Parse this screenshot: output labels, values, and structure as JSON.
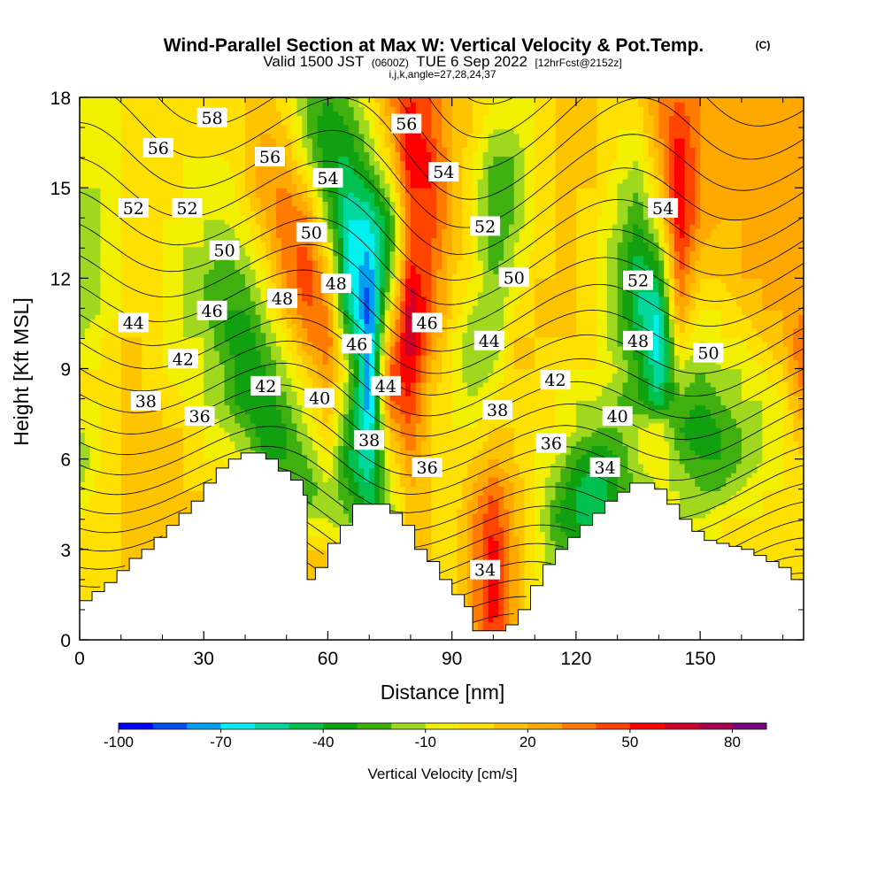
{
  "title": {
    "main": "Wind-Parallel Section at Max W: Vertical Velocity & Pot.Temp.",
    "copyright": "(C)",
    "valid_prefix": "Valid 1500 JST",
    "valid_utc": "(0600Z)",
    "valid_date": "TUE 6 Sep 2022",
    "forecast": "[12hrFcst@2152z]",
    "indices": "i,j,k,angle=27,28,24,37"
  },
  "chart_data": {
    "type": "heatmap",
    "xlabel": "Distance [nm]",
    "ylabel": "Height [Kft MSL]",
    "xlim": [
      0,
      175
    ],
    "ylim": [
      0,
      18
    ],
    "x_ticks": [
      "0",
      "30",
      "60",
      "90",
      "120",
      "150"
    ],
    "x_tick_values": [
      0,
      30,
      60,
      90,
      120,
      150
    ],
    "y_ticks": [
      "0",
      "3",
      "6",
      "9",
      "12",
      "15",
      "18"
    ],
    "y_tick_values": [
      0,
      3,
      6,
      9,
      12,
      15,
      18
    ],
    "colorbar": {
      "label": "Vertical Velocity [cm/s]",
      "tick_labels": [
        "-100",
        "-70",
        "-40",
        "-10",
        "20",
        "50",
        "80"
      ],
      "tick_values": [
        -100,
        -70,
        -40,
        -10,
        20,
        50,
        80
      ],
      "bins": [
        -100,
        -90,
        -80,
        -70,
        -60,
        -50,
        -40,
        -30,
        -20,
        -10,
        0,
        10,
        20,
        30,
        40,
        50,
        60,
        70,
        80,
        90
      ],
      "colors": [
        "#0000ff",
        "#0050f0",
        "#00a0f0",
        "#00f0f0",
        "#00d8a0",
        "#00c050",
        "#10a010",
        "#40b010",
        "#a0d820",
        "#f0f000",
        "#ffe000",
        "#ffc400",
        "#ffa800",
        "#ff7c00",
        "#ff4400",
        "#ff0000",
        "#d0002a",
        "#a80050",
        "#780080"
      ]
    },
    "w_field": {
      "description": "Vertical velocity (cm/s) sampled on a regular grid",
      "x": [
        0,
        5,
        10,
        15,
        20,
        25,
        30,
        35,
        40,
        45,
        50,
        55,
        60,
        65,
        70,
        75,
        80,
        85,
        90,
        95,
        100,
        105,
        110,
        115,
        120,
        125,
        130,
        135,
        140,
        145,
        150,
        155,
        160,
        165,
        170,
        175
      ],
      "y": [
        0,
        1,
        2,
        3,
        4,
        5,
        6,
        7,
        8,
        9,
        10,
        11,
        12,
        13,
        14,
        15,
        16,
        17,
        18
      ],
      "values": [
        [
          0,
          5,
          10,
          10,
          10,
          10,
          10,
          10,
          10,
          10,
          10,
          10,
          10,
          0,
          -30,
          -20,
          20,
          10,
          0,
          20,
          50,
          20,
          0,
          -20,
          -30,
          -40,
          -30,
          -20,
          -10,
          -10,
          -10,
          0,
          0,
          0,
          0,
          0
        ],
        [
          0,
          5,
          10,
          10,
          10,
          10,
          10,
          10,
          10,
          10,
          10,
          10,
          10,
          0,
          -40,
          -20,
          20,
          10,
          0,
          30,
          55,
          25,
          0,
          -20,
          -30,
          -40,
          -30,
          -20,
          -10,
          -10,
          -10,
          0,
          0,
          0,
          0,
          0
        ],
        [
          0,
          5,
          10,
          10,
          10,
          10,
          10,
          10,
          10,
          10,
          10,
          10,
          10,
          0,
          -40,
          -20,
          20,
          10,
          0,
          30,
          55,
          25,
          0,
          -20,
          -30,
          -40,
          -30,
          -20,
          -10,
          -10,
          -10,
          0,
          0,
          0,
          0,
          10
        ],
        [
          0,
          5,
          10,
          10,
          10,
          10,
          10,
          10,
          10,
          10,
          10,
          10,
          10,
          0,
          -40,
          -20,
          20,
          10,
          0,
          30,
          55,
          25,
          0,
          -20,
          -30,
          -40,
          -40,
          -20,
          -10,
          -10,
          -10,
          0,
          0,
          0,
          0,
          10
        ],
        [
          0,
          5,
          10,
          10,
          10,
          10,
          10,
          10,
          10,
          10,
          0,
          -10,
          -10,
          -20,
          -40,
          -20,
          20,
          10,
          0,
          30,
          50,
          20,
          0,
          -30,
          -40,
          -50,
          -40,
          -20,
          -10,
          -10,
          -10,
          0,
          0,
          0,
          0,
          10
        ],
        [
          -10,
          5,
          10,
          10,
          10,
          10,
          10,
          10,
          10,
          0,
          -20,
          -30,
          -10,
          -30,
          -50,
          -10,
          20,
          10,
          0,
          20,
          40,
          20,
          0,
          -20,
          -40,
          -50,
          -30,
          -20,
          -10,
          -10,
          -20,
          -20,
          -10,
          0,
          0,
          10
        ],
        [
          -20,
          0,
          10,
          10,
          10,
          10,
          0,
          0,
          -10,
          -30,
          -30,
          -20,
          0,
          -40,
          -60,
          0,
          30,
          10,
          0,
          10,
          20,
          10,
          0,
          -10,
          -30,
          -40,
          -30,
          -10,
          0,
          -20,
          -30,
          -30,
          -20,
          -10,
          0,
          10
        ],
        [
          -10,
          0,
          10,
          10,
          10,
          10,
          0,
          -10,
          -20,
          -40,
          -30,
          -10,
          10,
          -30,
          -70,
          20,
          40,
          10,
          0,
          0,
          10,
          10,
          0,
          0,
          -10,
          -20,
          -20,
          -10,
          0,
          -30,
          -40,
          -30,
          -20,
          -10,
          0,
          20
        ],
        [
          0,
          0,
          10,
          10,
          10,
          0,
          -10,
          -20,
          -40,
          -40,
          -20,
          0,
          20,
          -20,
          -80,
          40,
          50,
          10,
          0,
          -10,
          0,
          10,
          0,
          0,
          -10,
          -10,
          -20,
          -30,
          -50,
          -20,
          -30,
          -20,
          -10,
          -10,
          0,
          30
        ],
        [
          0,
          0,
          10,
          10,
          0,
          -10,
          -10,
          -20,
          -40,
          -30,
          -10,
          10,
          30,
          -10,
          -80,
          40,
          60,
          20,
          0,
          -20,
          -10,
          10,
          10,
          0,
          0,
          0,
          -10,
          -30,
          -60,
          -10,
          -20,
          -10,
          -10,
          0,
          10,
          40
        ],
        [
          -10,
          0,
          10,
          10,
          0,
          -10,
          -10,
          -30,
          -40,
          -20,
          0,
          30,
          40,
          -30,
          -80,
          20,
          70,
          30,
          0,
          -20,
          -20,
          10,
          10,
          10,
          10,
          0,
          -20,
          -40,
          -70,
          10,
          -10,
          0,
          0,
          10,
          20,
          40
        ],
        [
          -20,
          -10,
          0,
          10,
          0,
          -10,
          -20,
          -30,
          -30,
          -10,
          20,
          40,
          30,
          -50,
          -90,
          0,
          70,
          40,
          10,
          -10,
          -20,
          0,
          10,
          10,
          10,
          0,
          -20,
          -50,
          -60,
          30,
          0,
          0,
          10,
          20,
          20,
          30
        ],
        [
          -20,
          -10,
          0,
          0,
          0,
          -10,
          -20,
          -30,
          -20,
          0,
          30,
          50,
          20,
          -60,
          -80,
          -20,
          60,
          40,
          10,
          0,
          -20,
          -10,
          10,
          10,
          10,
          0,
          -20,
          -50,
          -40,
          40,
          10,
          10,
          20,
          20,
          20,
          20
        ],
        [
          -20,
          -10,
          0,
          0,
          0,
          -10,
          -10,
          -20,
          -10,
          10,
          40,
          40,
          0,
          -60,
          -70,
          -30,
          40,
          40,
          20,
          0,
          -30,
          -10,
          0,
          10,
          10,
          0,
          -20,
          -40,
          -20,
          50,
          20,
          10,
          20,
          20,
          20,
          20
        ],
        [
          -20,
          -10,
          0,
          0,
          0,
          0,
          -10,
          -10,
          0,
          20,
          40,
          30,
          -20,
          -60,
          -60,
          -30,
          40,
          50,
          20,
          0,
          -30,
          -20,
          0,
          10,
          10,
          0,
          -10,
          -30,
          0,
          60,
          30,
          20,
          20,
          20,
          20,
          20
        ],
        [
          -10,
          -10,
          0,
          0,
          0,
          0,
          -10,
          -10,
          10,
          30,
          30,
          10,
          -30,
          -50,
          -40,
          -10,
          50,
          50,
          20,
          0,
          -30,
          -20,
          0,
          10,
          10,
          10,
          -10,
          -20,
          10,
          60,
          30,
          20,
          20,
          20,
          20,
          20
        ],
        [
          -10,
          -10,
          0,
          0,
          0,
          0,
          0,
          0,
          10,
          30,
          20,
          -10,
          -40,
          -40,
          -20,
          10,
          60,
          50,
          20,
          0,
          -20,
          -20,
          0,
          10,
          10,
          10,
          0,
          -10,
          20,
          60,
          30,
          20,
          20,
          20,
          20,
          20
        ],
        [
          -10,
          -10,
          0,
          0,
          0,
          0,
          0,
          0,
          10,
          20,
          10,
          -20,
          -40,
          -30,
          -10,
          20,
          60,
          40,
          20,
          10,
          -10,
          -10,
          0,
          10,
          10,
          10,
          0,
          0,
          30,
          50,
          30,
          20,
          20,
          20,
          20,
          20
        ],
        [
          -10,
          -10,
          0,
          0,
          0,
          0,
          0,
          0,
          10,
          20,
          0,
          -20,
          -30,
          -20,
          0,
          30,
          50,
          40,
          20,
          10,
          0,
          -10,
          0,
          10,
          10,
          10,
          0,
          10,
          30,
          40,
          30,
          20,
          20,
          20,
          20,
          20
        ]
      ]
    },
    "terrain_kft": {
      "description": "Surface height (Kft MSL) along the section",
      "x": [
        0,
        3,
        6,
        9,
        12,
        15,
        18,
        21,
        24,
        27,
        30,
        33,
        36,
        39,
        42,
        45,
        48,
        51,
        54,
        55,
        57,
        60,
        63,
        66,
        69,
        72,
        75,
        78,
        81,
        84,
        87,
        90,
        93,
        95,
        97,
        100,
        103,
        106,
        109,
        112,
        115,
        118,
        121,
        124,
        127,
        130,
        133,
        136,
        139,
        142,
        145,
        148,
        151,
        154,
        157,
        160,
        163,
        166,
        169,
        172,
        175
      ],
      "values": [
        1.3,
        1.6,
        1.9,
        2.3,
        2.7,
        3.0,
        3.4,
        3.8,
        4.2,
        4.6,
        5.2,
        5.7,
        6.0,
        6.2,
        6.2,
        6.0,
        5.6,
        5.3,
        4.8,
        2.0,
        2.4,
        3.2,
        3.8,
        4.5,
        4.5,
        4.5,
        4.2,
        3.8,
        3.0,
        2.6,
        2.0,
        1.5,
        1.1,
        0.3,
        0.3,
        0.3,
        0.5,
        1.0,
        1.8,
        2.5,
        3.0,
        3.4,
        3.8,
        4.2,
        4.6,
        4.9,
        5.2,
        5.2,
        5.0,
        4.5,
        4.0,
        3.6,
        3.3,
        3.2,
        3.1,
        3.0,
        2.8,
        2.6,
        2.4,
        2.0,
        2.0
      ]
    },
    "theta_contours": {
      "description": "Potential temperature isentropes (1 unit interval); labelled levels shown with their label positions in data coordinates",
      "min": 33,
      "max": 59,
      "labels": [
        {
          "text": "58",
          "x": 32,
          "y": 17.3
        },
        {
          "text": "56",
          "x": 19,
          "y": 16.3
        },
        {
          "text": "56",
          "x": 46,
          "y": 16.0
        },
        {
          "text": "56",
          "x": 79,
          "y": 17.1
        },
        {
          "text": "54",
          "x": 60,
          "y": 15.3
        },
        {
          "text": "54",
          "x": 88,
          "y": 15.5
        },
        {
          "text": "54",
          "x": 141,
          "y": 14.3
        },
        {
          "text": "52",
          "x": 13,
          "y": 14.3
        },
        {
          "text": "52",
          "x": 26,
          "y": 14.3
        },
        {
          "text": "52",
          "x": 98,
          "y": 13.7
        },
        {
          "text": "52",
          "x": 135,
          "y": 11.9
        },
        {
          "text": "50",
          "x": 56,
          "y": 13.5
        },
        {
          "text": "50",
          "x": 35,
          "y": 12.9
        },
        {
          "text": "50",
          "x": 105,
          "y": 12.0
        },
        {
          "text": "50",
          "x": 152,
          "y": 9.5
        },
        {
          "text": "48",
          "x": 62,
          "y": 11.8
        },
        {
          "text": "48",
          "x": 49,
          "y": 11.3
        },
        {
          "text": "48",
          "x": 135,
          "y": 9.9
        },
        {
          "text": "46",
          "x": 32,
          "y": 10.9
        },
        {
          "text": "46",
          "x": 67,
          "y": 9.8
        },
        {
          "text": "46",
          "x": 84,
          "y": 10.5
        },
        {
          "text": "44",
          "x": 13,
          "y": 10.5
        },
        {
          "text": "44",
          "x": 74,
          "y": 8.4
        },
        {
          "text": "44",
          "x": 99,
          "y": 9.9
        },
        {
          "text": "42",
          "x": 25,
          "y": 9.3
        },
        {
          "text": "42",
          "x": 45,
          "y": 8.4
        },
        {
          "text": "42",
          "x": 115,
          "y": 8.6
        },
        {
          "text": "40",
          "x": 58,
          "y": 8.0
        },
        {
          "text": "40",
          "x": 130,
          "y": 7.4
        },
        {
          "text": "38",
          "x": 16,
          "y": 7.9
        },
        {
          "text": "38",
          "x": 70,
          "y": 6.6
        },
        {
          "text": "38",
          "x": 101,
          "y": 7.6
        },
        {
          "text": "36",
          "x": 29,
          "y": 7.4
        },
        {
          "text": "36",
          "x": 84,
          "y": 5.7
        },
        {
          "text": "36",
          "x": 114,
          "y": 6.5
        },
        {
          "text": "34",
          "x": 127,
          "y": 5.7
        },
        {
          "text": "34",
          "x": 98,
          "y": 2.3
        }
      ]
    }
  }
}
